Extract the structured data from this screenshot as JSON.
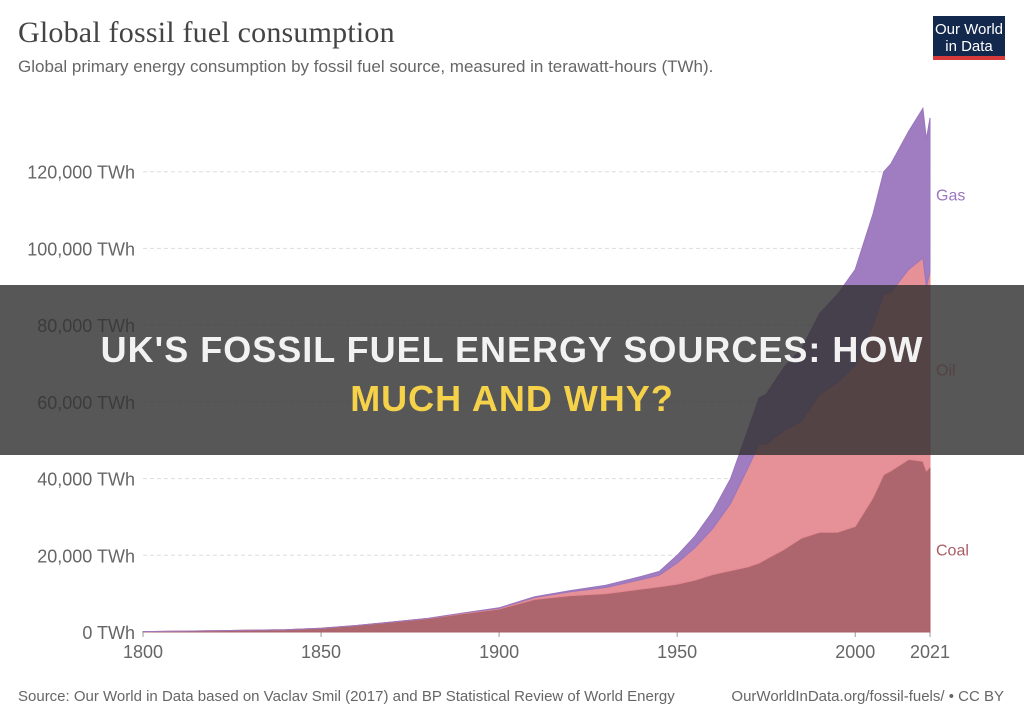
{
  "header": {
    "title": "Global fossil fuel consumption",
    "subtitle": "Global primary energy consumption by fossil fuel source, measured in terawatt-hours (TWh)."
  },
  "logo": {
    "line1": "Our World",
    "line2": "in Data",
    "bg_color": "#12284d",
    "bar_color": "#d63a3a"
  },
  "banner": {
    "line1": "UK's Fossil Fuel Energy Sources: How",
    "line2": "Much and Why?"
  },
  "footer": {
    "source": "Source: Our World in Data based on Vaclav Smil (2017) and BP Statistical Review of World Energy",
    "url": "OurWorldInData.org/fossil-fuels/ • CC BY"
  },
  "chart_data": {
    "type": "area",
    "stacked": true,
    "title": "Global fossil fuel consumption",
    "ylabel": "",
    "xlabel": "",
    "xlim": [
      1800,
      2021
    ],
    "ylim": [
      0,
      140000
    ],
    "y_ticks": [
      0,
      20000,
      40000,
      60000,
      80000,
      100000,
      120000
    ],
    "y_tick_labels": [
      "0 TWh",
      "20,000 TWh",
      "40,000 TWh",
      "60,000 TWh",
      "80,000 TWh",
      "100,000 TWh",
      "120,000 TWh"
    ],
    "x_ticks": [
      1800,
      1850,
      1900,
      1950,
      2000,
      2021
    ],
    "x_tick_labels": [
      "1800",
      "1850",
      "1900",
      "1950",
      "2000",
      "2021"
    ],
    "grid": true,
    "legend": "inline-right",
    "x": [
      1800,
      1820,
      1840,
      1850,
      1860,
      1870,
      1880,
      1890,
      1900,
      1910,
      1920,
      1930,
      1940,
      1945,
      1950,
      1955,
      1960,
      1965,
      1970,
      1973,
      1975,
      1980,
      1985,
      1990,
      1995,
      2000,
      2005,
      2008,
      2010,
      2015,
      2019,
      2020,
      2021
    ],
    "series": [
      {
        "name": "Coal",
        "color": "#a95e66",
        "values": [
          100,
          300,
          600,
          1000,
          1700,
          2600,
          3500,
          4800,
          6000,
          8500,
          9500,
          10000,
          11200,
          11800,
          12500,
          13500,
          15000,
          16000,
          17000,
          18000,
          19000,
          21500,
          24500,
          26000,
          26000,
          27500,
          35000,
          41000,
          42000,
          45000,
          44500,
          42000,
          43000
        ]
      },
      {
        "name": "Oil",
        "color": "#e58a92",
        "values": [
          0,
          0,
          0,
          0,
          0,
          0,
          50,
          150,
          200,
          500,
          1000,
          1600,
          2500,
          3000,
          5500,
          8500,
          12000,
          17500,
          26000,
          31000,
          30000,
          31000,
          30500,
          36000,
          39000,
          42000,
          45000,
          47000,
          46500,
          49500,
          53000,
          48000,
          51000
        ]
      },
      {
        "name": "Gas",
        "color": "#9a76bd",
        "values": [
          0,
          0,
          0,
          0,
          0,
          0,
          0,
          0,
          100,
          200,
          300,
          600,
          800,
          1000,
          2000,
          3000,
          4500,
          6500,
          10000,
          12000,
          13000,
          16500,
          19000,
          21000,
          23000,
          25000,
          29000,
          32000,
          33500,
          36000,
          39000,
          38500,
          40000
        ]
      }
    ]
  }
}
